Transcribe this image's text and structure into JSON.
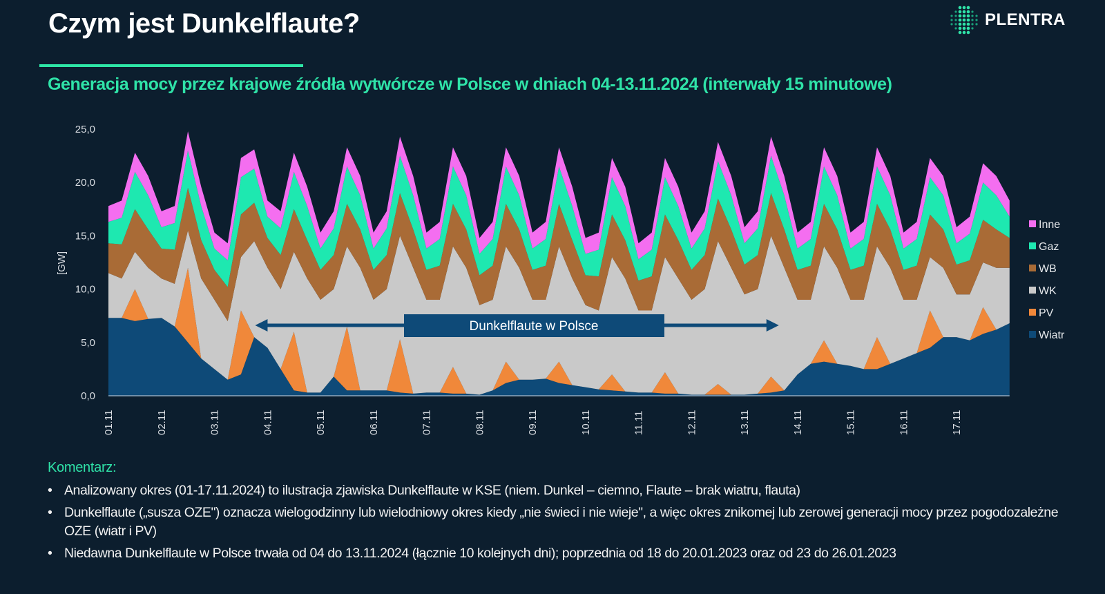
{
  "header": {
    "title": "Czym jest Dunkelflaute?",
    "subtitle": "Generacja mocy przez krajowe źródła wytwórcze w Polsce w dniach 04-13.11.2024 (interwały 15 minutowe)",
    "logo": "PLENTRA"
  },
  "colors": {
    "background": "#0c1e2e",
    "accent": "#2fe3a8"
  },
  "chart_data": {
    "type": "area",
    "stacked": true,
    "ylabel": "[GW]",
    "ylim": [
      0,
      25
    ],
    "yticks": [
      "0,0",
      "5,0",
      "10,0",
      "15,0",
      "20,0",
      "25,0"
    ],
    "ytick_values": [
      0,
      5,
      10,
      15,
      20,
      25
    ],
    "xticks": [
      "01.11",
      "02.11",
      "03.11",
      "04.11",
      "05.11",
      "06.11",
      "07.11",
      "08.11",
      "09.11",
      "10.11",
      "11.11",
      "12.11",
      "13.11",
      "14.11",
      "15.11",
      "16.11",
      "17.11"
    ],
    "grid": false,
    "legend_placement": "right",
    "x": [
      "01.11 00:00",
      "01.11 06:00",
      "01.11 12:00",
      "01.11 18:00",
      "02.11 00:00",
      "02.11 06:00",
      "02.11 12:00",
      "02.11 18:00",
      "03.11 00:00",
      "03.11 06:00",
      "03.11 12:00",
      "03.11 18:00",
      "04.11 00:00",
      "04.11 06:00",
      "04.11 12:00",
      "04.11 18:00",
      "05.11 00:00",
      "05.11 06:00",
      "05.11 12:00",
      "05.11 18:00",
      "06.11 00:00",
      "06.11 06:00",
      "06.11 12:00",
      "06.11 18:00",
      "07.11 00:00",
      "07.11 06:00",
      "07.11 12:00",
      "07.11 18:00",
      "08.11 00:00",
      "08.11 06:00",
      "08.11 12:00",
      "08.11 18:00",
      "09.11 00:00",
      "09.11 06:00",
      "09.11 12:00",
      "09.11 18:00",
      "10.11 00:00",
      "10.11 06:00",
      "10.11 12:00",
      "10.11 18:00",
      "11.11 00:00",
      "11.11 06:00",
      "11.11 12:00",
      "11.11 18:00",
      "12.11 00:00",
      "12.11 06:00",
      "12.11 12:00",
      "12.11 18:00",
      "13.11 00:00",
      "13.11 06:00",
      "13.11 12:00",
      "13.11 18:00",
      "14.11 00:00",
      "14.11 06:00",
      "14.11 12:00",
      "14.11 18:00",
      "15.11 00:00",
      "15.11 06:00",
      "15.11 12:00",
      "15.11 18:00",
      "16.11 00:00",
      "16.11 06:00",
      "16.11 12:00",
      "16.11 18:00",
      "17.11 00:00",
      "17.11 06:00",
      "17.11 12:00",
      "17.11 18:00",
      "18.11 00:00"
    ],
    "series": [
      {
        "name": "Wiatr",
        "color": "#0e4a78",
        "values": [
          7.3,
          7.3,
          7.0,
          7.2,
          7.3,
          6.5,
          5.0,
          3.5,
          2.5,
          1.5,
          2.0,
          5.5,
          4.5,
          2.5,
          0.5,
          0.3,
          0.3,
          1.8,
          0.5,
          0.5,
          0.5,
          0.5,
          0.3,
          0.2,
          0.3,
          0.3,
          0.2,
          0.2,
          0.1,
          0.5,
          1.2,
          1.5,
          1.5,
          1.6,
          1.2,
          1.0,
          0.8,
          0.6,
          0.5,
          0.4,
          0.3,
          0.3,
          0.2,
          0.2,
          0.1,
          0.1,
          0.1,
          0.1,
          0.1,
          0.2,
          0.3,
          0.5,
          2.0,
          3.0,
          3.2,
          3.0,
          2.8,
          2.5,
          2.5,
          3.0,
          3.5,
          4.0,
          4.5,
          5.5,
          5.5,
          5.2,
          5.8,
          6.2,
          6.8
        ]
      },
      {
        "name": "PV",
        "color": "#f0883a",
        "values": [
          0,
          0,
          3,
          0,
          0,
          0,
          7,
          0,
          0,
          0,
          6,
          0,
          0,
          0,
          5.5,
          0,
          0,
          0,
          6,
          0,
          0,
          0,
          5,
          0,
          0,
          0,
          2.5,
          0,
          0,
          0,
          2,
          0,
          0,
          0,
          2,
          0,
          0,
          0,
          1.5,
          0,
          0,
          0,
          2,
          0,
          0,
          0,
          1,
          0,
          0,
          0,
          1.5,
          0,
          0,
          0,
          2,
          0,
          0,
          0,
          3,
          0,
          0,
          0,
          3.5,
          0,
          0,
          0,
          2.5,
          0,
          0
        ]
      },
      {
        "name": "WK",
        "color": "#c9c9c9",
        "values": [
          4.2,
          3.7,
          3.5,
          4.8,
          3.7,
          4.0,
          3.5,
          7.5,
          6.5,
          5.5,
          5.0,
          9.0,
          7.5,
          7.5,
          7.5,
          10.7,
          8.7,
          8.2,
          7.5,
          11.5,
          8.5,
          9.5,
          9.7,
          11.8,
          8.7,
          8.7,
          11.3,
          11.8,
          8.4,
          8.5,
          10.8,
          10.5,
          7.5,
          7.4,
          10.8,
          10.0,
          7.7,
          7.4,
          11.0,
          10.6,
          7.7,
          7.7,
          10.8,
          10.8,
          8.9,
          9.9,
          13.4,
          11.9,
          9.4,
          9.8,
          13.2,
          11.5,
          7.0,
          6.0,
          8.8,
          9.0,
          6.2,
          6.5,
          8.5,
          9.0,
          5.5,
          5.0,
          5.0,
          6.5,
          4.0,
          4.3,
          4.2,
          5.8,
          5.2
        ]
      },
      {
        "name": "WB",
        "color": "#a96b36",
        "values": [
          2.8,
          3.2,
          4.0,
          3.6,
          2.8,
          3.2,
          4.0,
          3.6,
          2.8,
          3.2,
          4.0,
          3.6,
          2.8,
          3.2,
          4.0,
          3.6,
          2.8,
          3.2,
          4.0,
          3.6,
          2.8,
          3.2,
          4.0,
          3.6,
          2.8,
          3.2,
          4.0,
          3.6,
          2.8,
          3.2,
          4.0,
          3.6,
          2.8,
          3.2,
          4.0,
          3.6,
          2.8,
          3.2,
          4.0,
          3.6,
          2.8,
          3.2,
          4.0,
          3.6,
          2.8,
          3.2,
          4.0,
          3.6,
          2.8,
          3.2,
          4.0,
          3.6,
          2.8,
          3.2,
          4.0,
          3.6,
          2.8,
          3.2,
          4.0,
          3.6,
          2.8,
          3.2,
          4.0,
          3.6,
          2.8,
          3.2,
          4.0,
          3.6,
          2.8
        ]
      },
      {
        "name": "Gaz",
        "color": "#1ee8b0",
        "values": [
          2.0,
          2.5,
          3.5,
          3.2,
          2.0,
          2.5,
          3.5,
          3.2,
          2.0,
          2.5,
          3.5,
          3.2,
          2.0,
          2.5,
          3.5,
          3.2,
          2.0,
          2.5,
          3.5,
          3.2,
          2.0,
          2.5,
          3.5,
          3.2,
          2.0,
          2.5,
          3.5,
          3.2,
          2.0,
          2.5,
          3.5,
          3.2,
          2.0,
          2.5,
          3.5,
          3.2,
          2.0,
          2.5,
          3.5,
          3.2,
          2.0,
          2.5,
          3.5,
          3.2,
          2.0,
          2.5,
          3.5,
          3.2,
          2.0,
          2.5,
          3.5,
          3.2,
          2.0,
          2.5,
          3.5,
          3.2,
          2.0,
          2.5,
          3.5,
          3.2,
          2.0,
          2.5,
          3.5,
          3.2,
          2.0,
          2.5,
          3.5,
          3.2,
          2.0
        ]
      },
      {
        "name": "Inne",
        "color": "#f46ef0",
        "values": [
          1.5,
          1.6,
          1.8,
          1.8,
          1.5,
          1.6,
          1.8,
          1.8,
          1.5,
          1.6,
          1.8,
          1.8,
          1.5,
          1.6,
          1.8,
          1.8,
          1.5,
          1.6,
          1.8,
          1.8,
          1.5,
          1.6,
          1.8,
          1.8,
          1.5,
          1.6,
          1.8,
          1.8,
          1.5,
          1.6,
          1.8,
          1.8,
          1.5,
          1.6,
          1.8,
          1.8,
          1.5,
          1.6,
          1.8,
          1.8,
          1.5,
          1.6,
          1.8,
          1.8,
          1.5,
          1.6,
          1.8,
          1.8,
          1.5,
          1.6,
          1.8,
          1.8,
          1.5,
          1.6,
          1.8,
          1.8,
          1.5,
          1.6,
          1.8,
          1.8,
          1.5,
          1.6,
          1.8,
          1.8,
          1.5,
          1.6,
          1.8,
          1.8,
          1.5
        ]
      }
    ],
    "legend_order": [
      "Inne",
      "Gaz",
      "WB",
      "WK",
      "PV",
      "Wiatr"
    ],
    "annotation": {
      "text": "Dunkelflaute w Polsce",
      "from": "04.11",
      "to": "14.11",
      "color": "#0e4a78"
    }
  },
  "comments": {
    "heading": "Komentarz:",
    "items": [
      "Analizowany okres (01-17.11.2024) to ilustracja zjawiska Dunkelflaute w KSE (niem. Dunkel – ciemno, Flaute – brak wiatru, flauta)",
      "Dunkelflaute („susza OZE\") oznacza wielogodzinny lub wielodniowy okres kiedy „nie świeci i nie wieje\", a więc okres znikomej lub zerowej generacji mocy przez pogodozależne OZE (wiatr i PV)",
      "Niedawna Dunkelflaute w Polsce trwała od 04 do 13.11.2024 (łącznie 10 kolejnych dni); poprzednia od 18 do 20.01.2023 oraz od 23 do 26.01.2023"
    ]
  }
}
